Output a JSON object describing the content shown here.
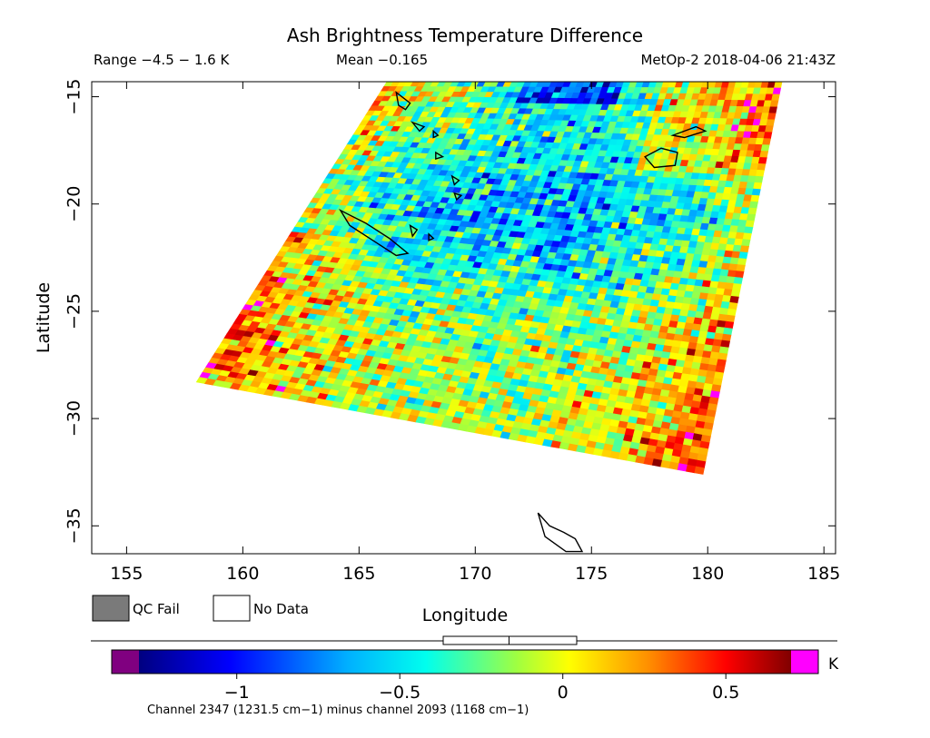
{
  "header": {
    "title": "Ash Brightness Temperature Difference",
    "range": "Range −4.5 − 1.6 K",
    "mean": "Mean −0.165",
    "satellite_time": "MetOp-2 2018-04-06 21:43Z"
  },
  "legend": {
    "qc_fail": "QC Fail",
    "no_data": "No Data",
    "qc_fail_color": "#7a7a7a"
  },
  "colorbar": {
    "unit": "K",
    "ticks": [
      {
        "value": -1,
        "label": "−1"
      },
      {
        "value": -0.5,
        "label": "−0.5"
      },
      {
        "value": 0,
        "label": "0"
      },
      {
        "value": 0.5,
        "label": "0.5"
      }
    ],
    "vmin": -1.3,
    "vmax": 0.7,
    "under_color": "#800080",
    "over_color": "#ff00ff",
    "mean_value": -0.165,
    "footnote": "Channel 2347 (1231.5 cm−1) minus channel 2093 (1168 cm−1)"
  },
  "chart_data": {
    "type": "heatmap",
    "title": "Ash Brightness Temperature Difference",
    "xlabel": "Longitude",
    "ylabel": "Latitude",
    "xlim": [
      153.5,
      185.5
    ],
    "ylim": [
      -36.3,
      -14.3
    ],
    "x_ticks": [
      {
        "value": 155,
        "label": "155"
      },
      {
        "value": 160,
        "label": "160"
      },
      {
        "value": 165,
        "label": "165"
      },
      {
        "value": 170,
        "label": "170"
      },
      {
        "value": 175,
        "label": "175"
      },
      {
        "value": 180,
        "label": "180"
      },
      {
        "value": 185,
        "label": "185"
      }
    ],
    "y_ticks": [
      {
        "value": -15,
        "label": "−15"
      },
      {
        "value": -20,
        "label": "−20"
      },
      {
        "value": -25,
        "label": "−25"
      },
      {
        "value": -30,
        "label": "−30"
      },
      {
        "value": -35,
        "label": "−35"
      }
    ],
    "units": "K",
    "value_range": [
      -4.5,
      1.6
    ],
    "mean": -0.165,
    "swath_corners": [
      [
        166.2,
        -14.3
      ],
      [
        183.2,
        -14.3
      ],
      [
        179.8,
        -32.6
      ],
      [
        158.0,
        -28.3
      ]
    ],
    "coastlines": [
      [
        [
          164.2,
          -20.3
        ],
        [
          165.3,
          -20.9
        ],
        [
          166.3,
          -21.6
        ],
        [
          167.1,
          -22.3
        ],
        [
          166.6,
          -22.4
        ],
        [
          165.6,
          -21.7
        ],
        [
          164.6,
          -21.0
        ],
        [
          164.2,
          -20.3
        ]
      ],
      [
        [
          177.3,
          -17.8
        ],
        [
          178.0,
          -17.4
        ],
        [
          178.7,
          -17.6
        ],
        [
          178.6,
          -18.2
        ],
        [
          177.7,
          -18.3
        ],
        [
          177.3,
          -17.8
        ]
      ],
      [
        [
          178.5,
          -16.8
        ],
        [
          179.5,
          -16.4
        ],
        [
          179.9,
          -16.6
        ],
        [
          179.0,
          -16.9
        ],
        [
          178.5,
          -16.8
        ]
      ],
      [
        [
          166.6,
          -14.8
        ],
        [
          167.2,
          -15.3
        ],
        [
          167.0,
          -15.6
        ],
        [
          166.7,
          -15.4
        ],
        [
          166.6,
          -14.8
        ]
      ],
      [
        [
          167.3,
          -16.2
        ],
        [
          167.8,
          -16.4
        ],
        [
          167.6,
          -16.6
        ],
        [
          167.3,
          -16.2
        ]
      ],
      [
        [
          168.2,
          -16.6
        ],
        [
          168.4,
          -16.8
        ],
        [
          168.2,
          -16.9
        ],
        [
          168.2,
          -16.6
        ]
      ],
      [
        [
          168.3,
          -17.6
        ],
        [
          168.6,
          -17.8
        ],
        [
          168.3,
          -17.9
        ],
        [
          168.3,
          -17.6
        ]
      ],
      [
        [
          169.0,
          -18.7
        ],
        [
          169.3,
          -18.9
        ],
        [
          169.1,
          -19.1
        ],
        [
          169.0,
          -18.7
        ]
      ],
      [
        [
          169.1,
          -19.5
        ],
        [
          169.4,
          -19.6
        ],
        [
          169.2,
          -19.8
        ],
        [
          169.1,
          -19.5
        ]
      ],
      [
        [
          167.2,
          -21.0
        ],
        [
          167.5,
          -21.2
        ],
        [
          167.3,
          -21.5
        ],
        [
          167.2,
          -21.0
        ]
      ],
      [
        [
          168.0,
          -21.4
        ],
        [
          168.2,
          -21.6
        ],
        [
          168.0,
          -21.7
        ],
        [
          168.0,
          -21.4
        ]
      ],
      [
        [
          172.7,
          -34.4
        ],
        [
          173.2,
          -35.0
        ],
        [
          173.8,
          -35.3
        ],
        [
          174.3,
          -35.6
        ],
        [
          174.6,
          -36.2
        ],
        [
          173.9,
          -36.2
        ],
        [
          173.0,
          -35.5
        ],
        [
          172.7,
          -34.4
        ]
      ]
    ]
  }
}
